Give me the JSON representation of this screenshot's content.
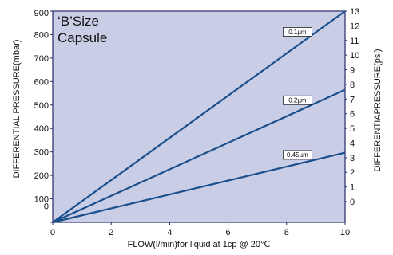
{
  "chart_data": {
    "type": "line",
    "annotation": [
      "‘B’Size",
      "Capsule"
    ],
    "xlabel": "FLOW(l/min)for liquid at 1cp @ 20℃",
    "ylabel_left": "DIFFERENTIAL PRESSURE(mbar)",
    "ylabel_right": "DIFFERENTIAPRESSURE(psi)",
    "xlim": [
      0,
      10
    ],
    "ylim_left": [
      0,
      900
    ],
    "ylim_right": [
      0,
      13
    ],
    "x_ticks": [
      "0",
      "2",
      "4",
      "6",
      "8",
      "10"
    ],
    "y_left_ticks": [
      {
        "value": 0,
        "label": "0"
      },
      {
        "value": 100,
        "label": "100"
      },
      {
        "value": 200,
        "label": "200"
      },
      {
        "value": 300,
        "label": "300"
      },
      {
        "value": 400,
        "label": "400"
      },
      {
        "value": 500,
        "label": "500"
      },
      {
        "value": 600,
        "label": "600"
      },
      {
        "value": 700,
        "label": "700"
      },
      {
        "value": 800,
        "label": "800"
      },
      {
        "value": 900,
        "label": "900"
      }
    ],
    "y_right_ticks": [
      "0",
      "1",
      "2",
      "3",
      "4",
      "5",
      "6",
      "7",
      "8",
      "9",
      "10",
      "11",
      "12",
      "13"
    ],
    "grid": false,
    "series": [
      {
        "name": "0.1µm",
        "x": [
          0,
          10
        ],
        "y": [
          -70,
          900
        ],
        "label_at_x": 8.7
      },
      {
        "name": "0.2µm",
        "x": [
          0,
          10
        ],
        "y": [
          -70,
          565
        ],
        "label_at_x": 8.7
      },
      {
        "name": "0.45µm",
        "x": [
          0,
          10
        ],
        "y": [
          -70,
          297
        ],
        "label_at_x": 8.7
      }
    ],
    "colors": {
      "plot_bg": "#c9cde6",
      "line": "#1a4f8c",
      "axis": "#2a2a6a"
    }
  }
}
